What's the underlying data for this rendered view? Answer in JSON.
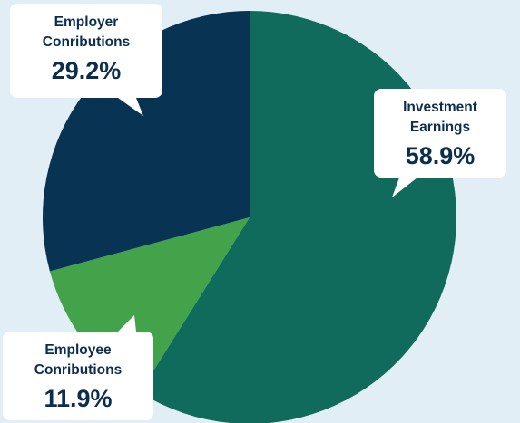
{
  "chart_data": {
    "type": "pie",
    "title": "",
    "slices": [
      {
        "label_lines": [
          "Investment",
          "Earnings"
        ],
        "value": 58.9,
        "value_label": "58.9%",
        "color": "#106b5c"
      },
      {
        "label_lines": [
          "Employee",
          "Conributions"
        ],
        "value": 11.9,
        "value_label": "11.9%",
        "color": "#43a34b"
      },
      {
        "label_lines": [
          "Employer",
          "Conributions"
        ],
        "value": 29.2,
        "value_label": "29.2%",
        "color": "#083353"
      }
    ],
    "start_angle": "12 o'clock",
    "direction": "clockwise",
    "legend": "none",
    "background_color": "#e2eef6",
    "callout_color": "#ffffff",
    "text_color": "#0b2e4f"
  }
}
